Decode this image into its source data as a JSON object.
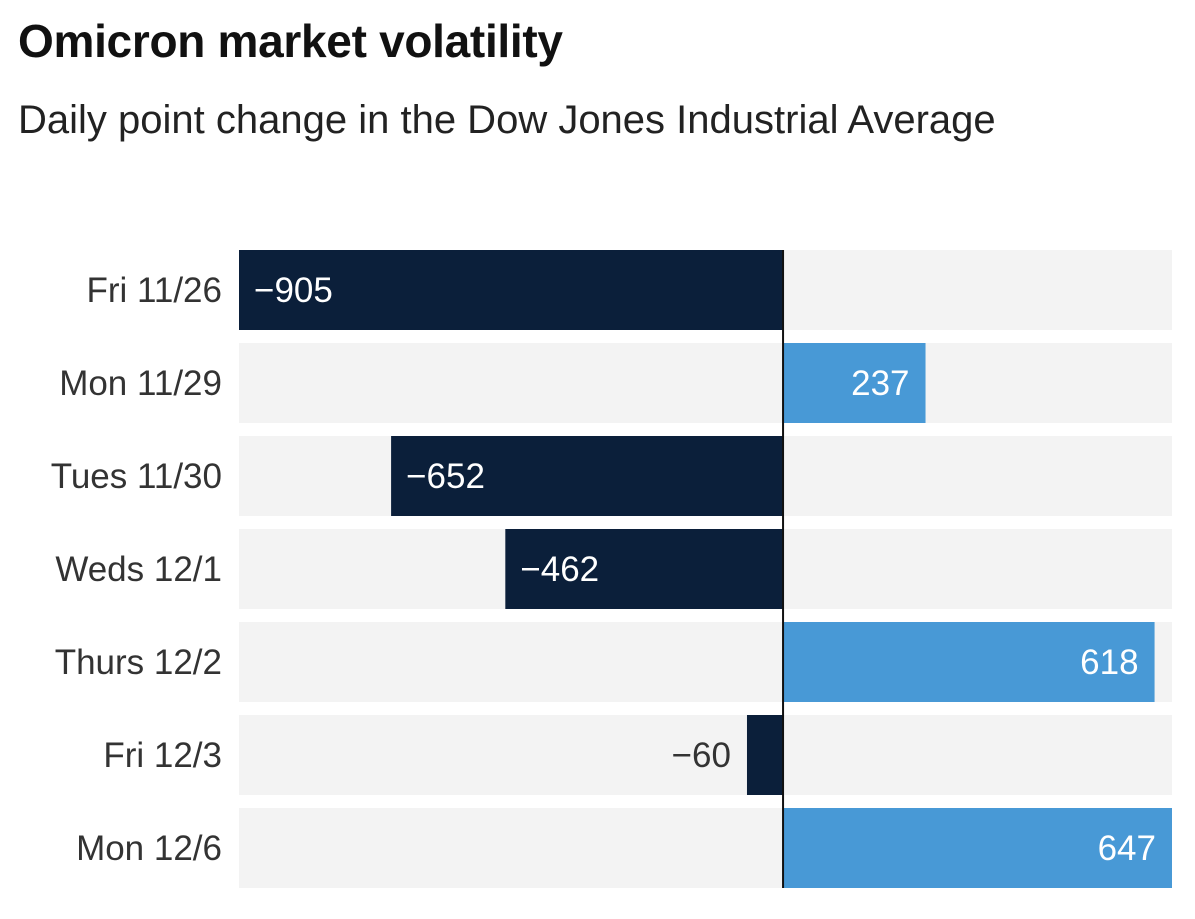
{
  "chart_data": {
    "type": "bar",
    "orientation": "horizontal",
    "title": "Omicron market volatility",
    "subtitle": "Daily point change in the Dow Jones Industrial Average",
    "categories": [
      "Fri 11/26",
      "Mon 11/29",
      "Tues 11/30",
      "Weds 12/1",
      "Thurs 12/2",
      "Fri 12/3",
      "Mon 12/6"
    ],
    "values": [
      -905,
      237,
      -652,
      -462,
      618,
      -60,
      647
    ],
    "value_labels": [
      "−905",
      "237",
      "−652",
      "−462",
      "618",
      "−60",
      "647"
    ],
    "xlim": [
      -905,
      647
    ],
    "grid": false,
    "legend": "none",
    "colors": {
      "negative": "#0b1f3a",
      "positive": "#4899d6",
      "row_background": "#f3f3f3",
      "zero_line": "#111111"
    }
  }
}
